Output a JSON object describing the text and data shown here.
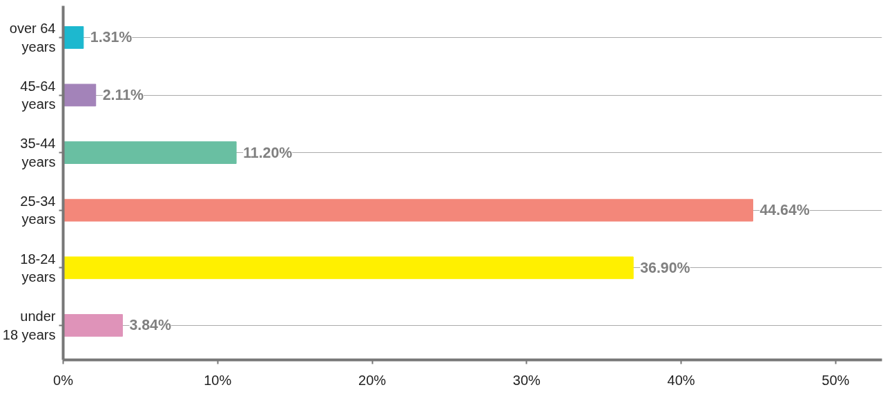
{
  "chart_data": {
    "type": "bar",
    "orientation": "horizontal",
    "categories": [
      "over 64\nyears",
      "45-64\nyears",
      "35-44\nyears",
      "25-34\nyears",
      "18-24\nyears",
      "under\n18 years"
    ],
    "values": [
      1.31,
      2.11,
      11.2,
      44.64,
      36.9,
      3.84
    ],
    "colors": [
      "#1db8cf",
      "#a383b9",
      "#69bfa2",
      "#f3877a",
      "#fff000",
      "#df93b9"
    ],
    "value_labels": [
      "1.31%",
      "2.11%",
      "11.20%",
      "44.64%",
      "36.90%",
      "3.84%"
    ],
    "xlim": [
      0,
      53
    ],
    "xticks": [
      {
        "value": 0,
        "label": "0%"
      },
      {
        "value": 10,
        "label": "10%"
      },
      {
        "value": 20,
        "label": "20%"
      },
      {
        "value": 30,
        "label": "30%"
      },
      {
        "value": 40,
        "label": "40%"
      },
      {
        "value": 50,
        "label": "50%"
      }
    ],
    "grid": "y"
  }
}
